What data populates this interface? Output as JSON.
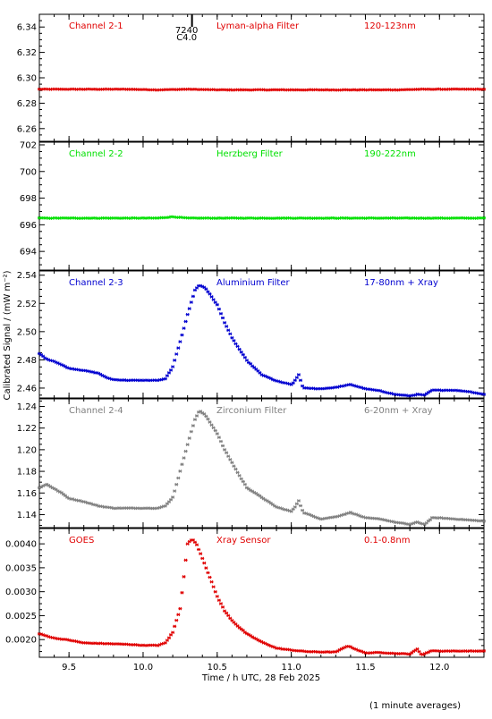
{
  "figure": {
    "ylabel_html": "Calibrated Signal / (mW m⁻²)",
    "xlabel": "Time / h UTC, 28 Feb 2025",
    "footnote": "(1 minute averages)",
    "marker": {
      "label1": "7240",
      "label2": "C4.0",
      "x": 10.33
    }
  },
  "chart_data": [
    {
      "type": "scatter",
      "channel": "Channel 2-1",
      "filter": "Lyman-alpha Filter",
      "band": "120-123nm",
      "color": "#e00000",
      "xlim": [
        9.3,
        12.3
      ],
      "ylim": [
        6.25,
        6.35
      ],
      "yticks": [
        6.26,
        6.28,
        6.3,
        6.32,
        6.34
      ],
      "ytick_labels": [
        "6.26",
        "6.28",
        "6.30",
        "6.32",
        "6.34"
      ],
      "points": [
        [
          9.3,
          6.291
        ],
        [
          9.5,
          6.291
        ],
        [
          9.7,
          6.291
        ],
        [
          9.9,
          6.291
        ],
        [
          10.1,
          6.2905
        ],
        [
          10.3,
          6.291
        ],
        [
          10.5,
          6.2905
        ],
        [
          10.7,
          6.2905
        ],
        [
          10.9,
          6.2905
        ],
        [
          11.1,
          6.2905
        ],
        [
          11.3,
          6.2905
        ],
        [
          11.5,
          6.2905
        ],
        [
          11.7,
          6.2905
        ],
        [
          11.9,
          6.291
        ],
        [
          12.1,
          6.291
        ],
        [
          12.3,
          6.291
        ]
      ]
    },
    {
      "type": "scatter",
      "channel": "Channel 2-2",
      "filter": "Herzberg Filter",
      "band": "190-222nm",
      "color": "#00e000",
      "xlim": [
        9.3,
        12.3
      ],
      "ylim": [
        692.6,
        702.2
      ],
      "yticks": [
        694,
        696,
        698,
        700,
        702
      ],
      "ytick_labels": [
        "694",
        "696",
        "698",
        "700",
        "702"
      ],
      "points": [
        [
          9.3,
          696.5
        ],
        [
          9.5,
          696.5
        ],
        [
          9.7,
          696.5
        ],
        [
          9.9,
          696.5
        ],
        [
          10.1,
          696.5
        ],
        [
          10.2,
          696.6
        ],
        [
          10.3,
          696.5
        ],
        [
          10.5,
          696.5
        ],
        [
          10.7,
          696.5
        ],
        [
          10.9,
          696.5
        ],
        [
          11.1,
          696.5
        ],
        [
          11.3,
          696.5
        ],
        [
          11.5,
          696.5
        ],
        [
          11.7,
          696.5
        ],
        [
          11.9,
          696.5
        ],
        [
          12.1,
          696.5
        ],
        [
          12.3,
          696.5
        ]
      ]
    },
    {
      "type": "scatter",
      "channel": "Channel 2-3",
      "filter": "Aluminium Filter",
      "band": "17-80nm + Xray",
      "color": "#0000d0",
      "xlim": [
        9.3,
        12.3
      ],
      "ylim": [
        2.453,
        2.543
      ],
      "yticks": [
        2.46,
        2.48,
        2.5,
        2.52,
        2.54
      ],
      "ytick_labels": [
        "2.46",
        "2.48",
        "2.50",
        "2.52",
        "2.54"
      ],
      "points": [
        [
          9.3,
          2.4845
        ],
        [
          9.35,
          2.4805
        ],
        [
          9.4,
          2.479
        ],
        [
          9.45,
          2.4765
        ],
        [
          9.5,
          2.474
        ],
        [
          9.6,
          2.4725
        ],
        [
          9.7,
          2.4705
        ],
        [
          9.75,
          2.4675
        ],
        [
          9.8,
          2.466
        ],
        [
          9.9,
          2.4655
        ],
        [
          10.0,
          2.4655
        ],
        [
          10.1,
          2.4655
        ],
        [
          10.15,
          2.4665
        ],
        [
          10.2,
          2.475
        ],
        [
          10.25,
          2.493
        ],
        [
          10.3,
          2.512
        ],
        [
          10.35,
          2.5295
        ],
        [
          10.38,
          2.533
        ],
        [
          10.42,
          2.531
        ],
        [
          10.5,
          2.519
        ],
        [
          10.55,
          2.5065
        ],
        [
          10.6,
          2.4955
        ],
        [
          10.65,
          2.4875
        ],
        [
          10.7,
          2.4795
        ],
        [
          10.75,
          2.4745
        ],
        [
          10.8,
          2.4695
        ],
        [
          10.9,
          2.465
        ],
        [
          11.0,
          2.4625
        ],
        [
          11.02,
          2.4645
        ],
        [
          11.05,
          2.4695
        ],
        [
          11.08,
          2.46
        ],
        [
          11.2,
          2.4595
        ],
        [
          11.3,
          2.4605
        ],
        [
          11.4,
          2.4625
        ],
        [
          11.5,
          2.4595
        ],
        [
          11.6,
          2.458
        ],
        [
          11.7,
          2.4555
        ],
        [
          11.8,
          2.4545
        ],
        [
          11.85,
          2.4555
        ],
        [
          11.9,
          2.455
        ],
        [
          11.95,
          2.4585
        ],
        [
          12.0,
          2.4585
        ],
        [
          12.1,
          2.4585
        ],
        [
          12.2,
          2.4575
        ],
        [
          12.3,
          2.4555
        ]
      ]
    },
    {
      "type": "scatter",
      "channel": "Channel 2-4",
      "filter": "Zirconium Filter",
      "band": "6-20nm + Xray",
      "color": "#808080",
      "xlim": [
        9.3,
        12.3
      ],
      "ylim": [
        1.128,
        1.247
      ],
      "yticks": [
        1.14,
        1.16,
        1.18,
        1.2,
        1.22,
        1.24
      ],
      "ytick_labels": [
        "1.14",
        "1.16",
        "1.18",
        "1.20",
        "1.22",
        "1.24"
      ],
      "points": [
        [
          9.3,
          1.165
        ],
        [
          9.35,
          1.168
        ],
        [
          9.4,
          1.164
        ],
        [
          9.45,
          1.16
        ],
        [
          9.5,
          1.155
        ],
        [
          9.6,
          1.152
        ],
        [
          9.7,
          1.148
        ],
        [
          9.8,
          1.146
        ],
        [
          9.9,
          1.146
        ],
        [
          10.0,
          1.146
        ],
        [
          10.1,
          1.146
        ],
        [
          10.15,
          1.148
        ],
        [
          10.2,
          1.156
        ],
        [
          10.25,
          1.18
        ],
        [
          10.3,
          1.205
        ],
        [
          10.35,
          1.228
        ],
        [
          10.38,
          1.236
        ],
        [
          10.42,
          1.232
        ],
        [
          10.5,
          1.215
        ],
        [
          10.55,
          1.2
        ],
        [
          10.6,
          1.188
        ],
        [
          10.65,
          1.176
        ],
        [
          10.7,
          1.165
        ],
        [
          10.8,
          1.156
        ],
        [
          10.9,
          1.147
        ],
        [
          11.0,
          1.143
        ],
        [
          11.02,
          1.146
        ],
        [
          11.05,
          1.153
        ],
        [
          11.08,
          1.142
        ],
        [
          11.2,
          1.136
        ],
        [
          11.3,
          1.138
        ],
        [
          11.4,
          1.142
        ],
        [
          11.5,
          1.137
        ],
        [
          11.6,
          1.136
        ],
        [
          11.7,
          1.133
        ],
        [
          11.8,
          1.131
        ],
        [
          11.85,
          1.133
        ],
        [
          11.9,
          1.131
        ],
        [
          11.95,
          1.137
        ],
        [
          12.0,
          1.137
        ],
        [
          12.1,
          1.136
        ],
        [
          12.2,
          1.135
        ],
        [
          12.3,
          1.134
        ]
      ]
    },
    {
      "type": "scatter",
      "channel": "GOES",
      "filter": "Xray Sensor",
      "band": "0.1-0.8nm",
      "color": "#e00000",
      "xlim": [
        9.3,
        12.3
      ],
      "ylim": [
        0.00163,
        0.00432
      ],
      "yticks": [
        0.002,
        0.0025,
        0.003,
        0.0035,
        0.004
      ],
      "ytick_labels": [
        "0.0020",
        "0.0025",
        "0.0030",
        "0.0035",
        "0.0040"
      ],
      "xticks": [
        9.5,
        10.0,
        10.5,
        11.0,
        11.5,
        12.0
      ],
      "xtick_labels": [
        "9.5",
        "10.0",
        "10.5",
        "11.0",
        "11.5",
        "12.0"
      ],
      "points": [
        [
          9.3,
          0.00212
        ],
        [
          9.4,
          0.00203
        ],
        [
          9.5,
          0.00199
        ],
        [
          9.6,
          0.00193
        ],
        [
          9.7,
          0.00192
        ],
        [
          9.8,
          0.00191
        ],
        [
          9.9,
          0.0019
        ],
        [
          10.0,
          0.00188
        ],
        [
          10.1,
          0.00188
        ],
        [
          10.15,
          0.00193
        ],
        [
          10.2,
          0.00215
        ],
        [
          10.25,
          0.00265
        ],
        [
          10.28,
          0.00345
        ],
        [
          10.3,
          0.004
        ],
        [
          10.33,
          0.0041
        ],
        [
          10.36,
          0.004
        ],
        [
          10.4,
          0.0037
        ],
        [
          10.45,
          0.0033
        ],
        [
          10.5,
          0.0029
        ],
        [
          10.55,
          0.0026
        ],
        [
          10.6,
          0.0024
        ],
        [
          10.65,
          0.00225
        ],
        [
          10.7,
          0.00212
        ],
        [
          10.8,
          0.00195
        ],
        [
          10.9,
          0.00182
        ],
        [
          11.0,
          0.00178
        ],
        [
          11.1,
          0.00175
        ],
        [
          11.2,
          0.00174
        ],
        [
          11.3,
          0.00174
        ],
        [
          11.35,
          0.00182
        ],
        [
          11.38,
          0.00187
        ],
        [
          11.45,
          0.00178
        ],
        [
          11.5,
          0.00172
        ],
        [
          11.6,
          0.00173
        ],
        [
          11.7,
          0.00171
        ],
        [
          11.8,
          0.0017
        ],
        [
          11.85,
          0.0018
        ],
        [
          11.88,
          0.00168
        ],
        [
          11.95,
          0.00177
        ],
        [
          12.0,
          0.00176
        ],
        [
          12.1,
          0.00176
        ],
        [
          12.2,
          0.00176
        ],
        [
          12.3,
          0.00176
        ]
      ]
    }
  ]
}
